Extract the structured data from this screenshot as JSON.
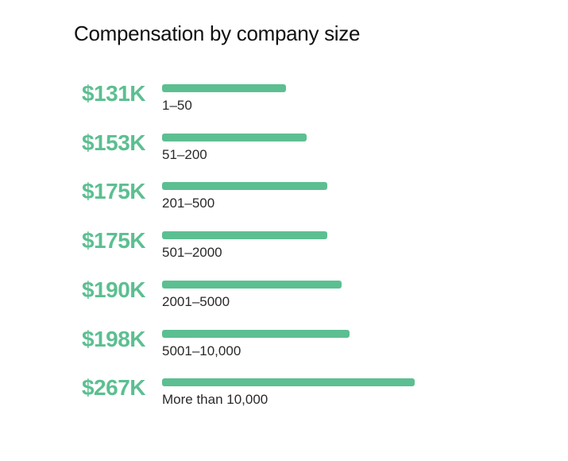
{
  "colors": {
    "bar": "#5cbf91",
    "value_text": "#5cbf91"
  },
  "chart_data": {
    "type": "bar",
    "orientation": "horizontal",
    "title": "Compensation by company size",
    "xlabel": "",
    "ylabel": "",
    "categories": [
      "1–50",
      "51–200",
      "201–500",
      "501–2000",
      "2001–5000",
      "5001–10,000",
      "More than 10,000"
    ],
    "values": [
      131,
      153,
      175,
      175,
      190,
      198,
      267
    ],
    "value_labels": [
      "$131K",
      "$153K",
      "$175K",
      "$175K",
      "$190K",
      "$198K",
      "$267K"
    ],
    "unit": "$K",
    "xlim": [
      0,
      267
    ],
    "grid": false,
    "legend": "none"
  }
}
